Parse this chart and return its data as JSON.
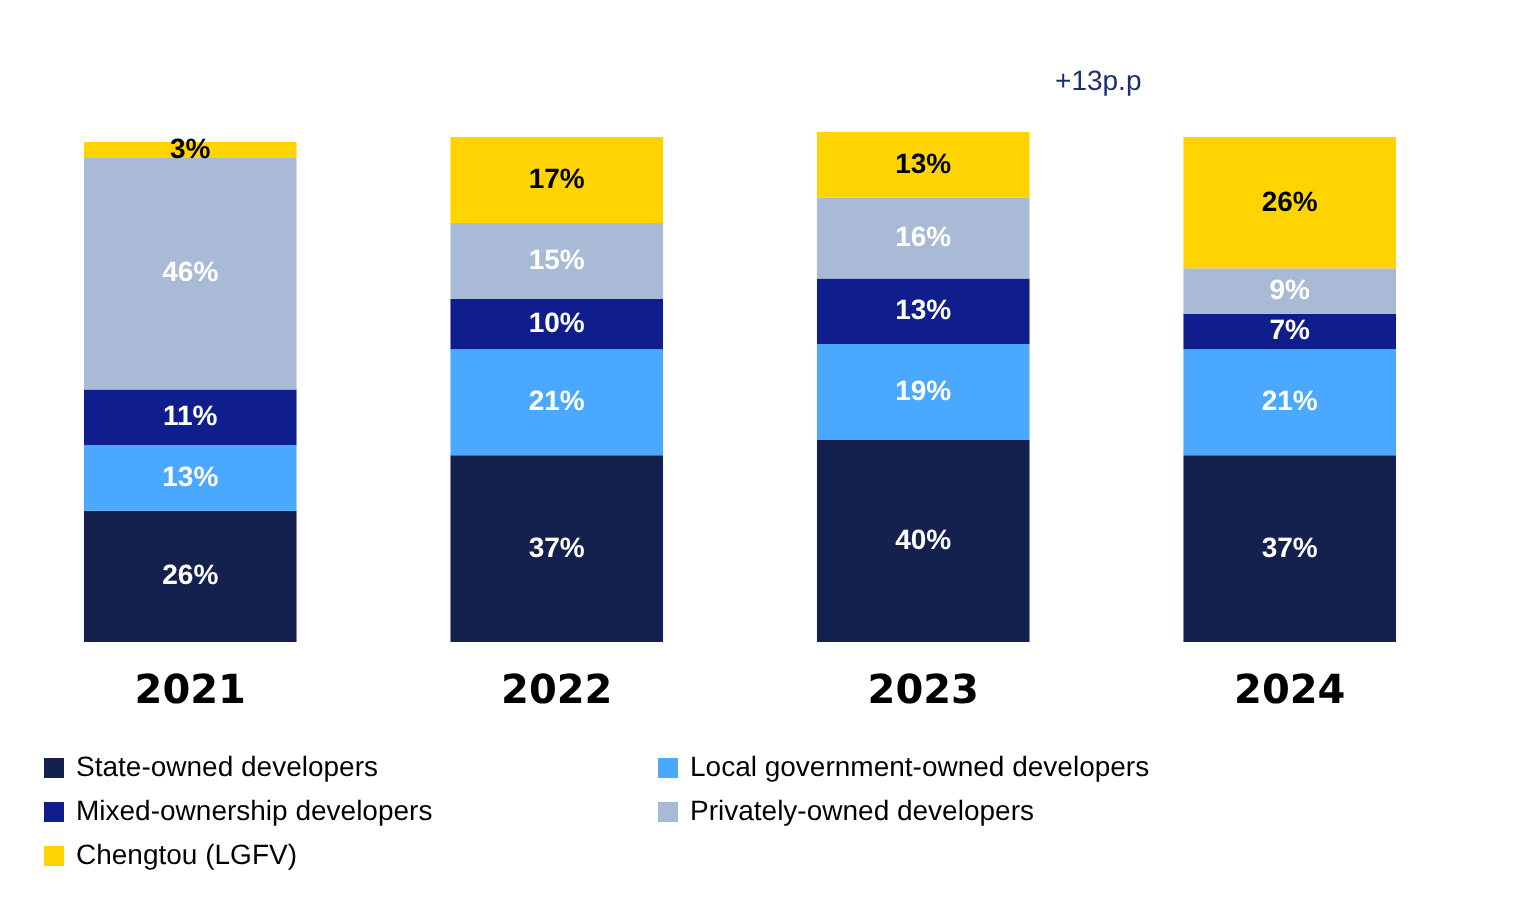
{
  "chart_data": {
    "type": "bar",
    "stacked": true,
    "legend": "bottom",
    "categories": [
      "2021",
      "2022",
      "2023",
      "2024"
    ],
    "series": [
      {
        "name": "State-owned developers",
        "color": "#14214f",
        "values": [
          26,
          37,
          40,
          37
        ],
        "value_labels": [
          "26%",
          "37%",
          "40%",
          "37%"
        ]
      },
      {
        "name": "Local government-owned developers",
        "color": "#4aa8ff",
        "values": [
          13,
          21,
          19,
          21
        ],
        "value_labels": [
          "13%",
          "21%",
          "19%",
          "21%"
        ]
      },
      {
        "name": "Mixed-ownership developers",
        "color": "#0f1e8c",
        "values": [
          11,
          10,
          13,
          7
        ],
        "value_labels": [
          "11%",
          "10%",
          "13%",
          "7%"
        ]
      },
      {
        "name": "Privately-owned developers",
        "color": "#a8bad6",
        "values": [
          46,
          15,
          16,
          9
        ],
        "value_labels": [
          "46%",
          "15%",
          "16%",
          "9%"
        ]
      },
      {
        "name": "Chengtou (LGFV)",
        "color": "#ffd400",
        "values": [
          3,
          17,
          13,
          26
        ],
        "value_labels": [
          "3%",
          "17%",
          "13%",
          "26%"
        ]
      }
    ],
    "annotations": [
      "+13p.p"
    ]
  }
}
